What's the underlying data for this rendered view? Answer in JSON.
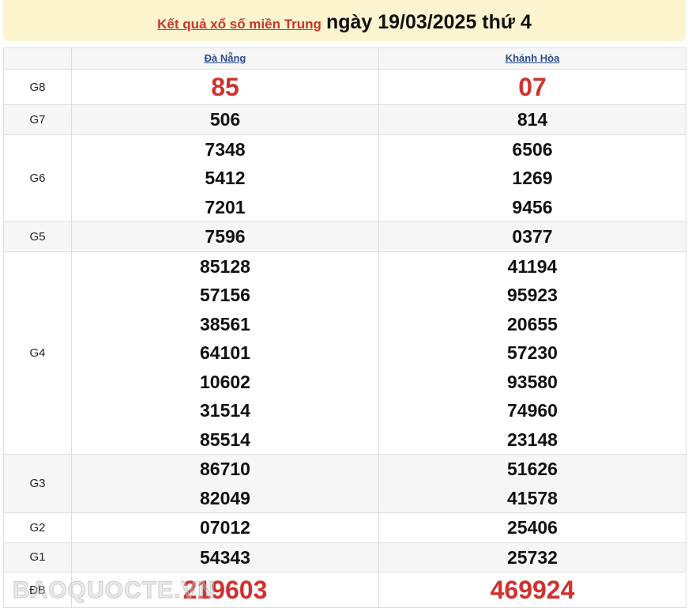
{
  "header": {
    "link": "Kết quả xổ số miền Trung",
    "date": "ngày 19/03/2025 thứ 4"
  },
  "provinces": [
    "Đà Nẵng",
    "Khánh Hòa"
  ],
  "prizes": [
    {
      "label": "G8",
      "values": [
        [
          "85"
        ],
        [
          "07"
        ]
      ],
      "big": true
    },
    {
      "label": "G7",
      "values": [
        [
          "506"
        ],
        [
          "814"
        ]
      ]
    },
    {
      "label": "G6",
      "values": [
        [
          "7348",
          "5412",
          "7201"
        ],
        [
          "6506",
          "1269",
          "9456"
        ]
      ]
    },
    {
      "label": "G5",
      "values": [
        [
          "7596"
        ],
        [
          "0377"
        ]
      ]
    },
    {
      "label": "G4",
      "values": [
        [
          "85128",
          "57156",
          "38561",
          "64101",
          "10602",
          "31514",
          "85514"
        ],
        [
          "41194",
          "95923",
          "20655",
          "57230",
          "93580",
          "74960",
          "23148"
        ]
      ]
    },
    {
      "label": "G3",
      "values": [
        [
          "86710",
          "82049"
        ],
        [
          "51626",
          "41578"
        ]
      ]
    },
    {
      "label": "G2",
      "values": [
        [
          "07012"
        ],
        [
          "25406"
        ]
      ]
    },
    {
      "label": "G1",
      "values": [
        [
          "54343"
        ],
        [
          "25732"
        ]
      ]
    },
    {
      "label": "ĐB",
      "values": [
        [
          "219603"
        ],
        [
          "469924"
        ]
      ],
      "big": true
    }
  ],
  "watermark": "BAOQUOCTE.VN",
  "colors": {
    "accent": "#d0312d",
    "header_bg": "#fbf4cf",
    "link": "#2a4d8f"
  }
}
